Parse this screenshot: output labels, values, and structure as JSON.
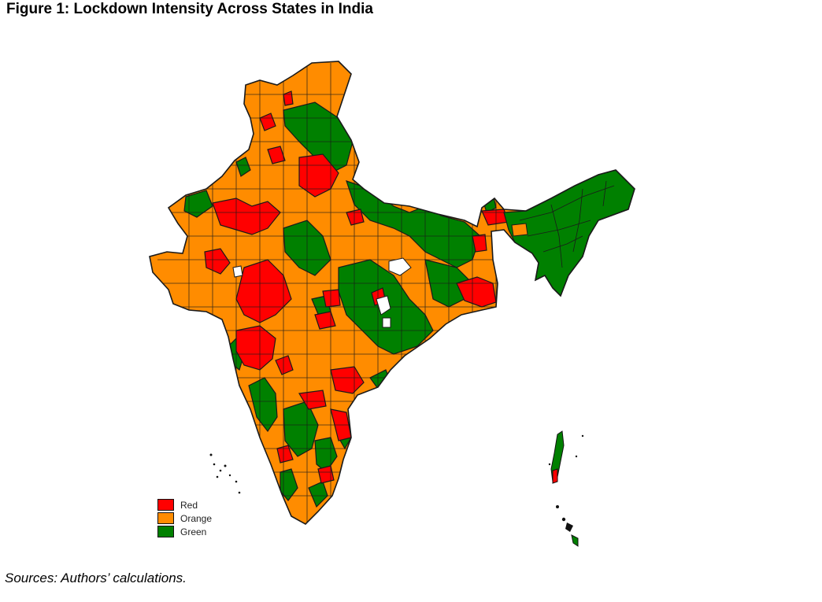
{
  "figure": {
    "title": "Figure 1: Lockdown Intensity Across States in India",
    "source_note": "Sources: Authors’ calculations."
  },
  "legend": {
    "items": [
      {
        "label": "Red",
        "color": "#FF0000"
      },
      {
        "label": "Orange",
        "color": "#FF8C00"
      },
      {
        "label": "Green",
        "color": "#008000"
      }
    ]
  },
  "colors": {
    "red": "#FF0000",
    "orange": "#FF8C00",
    "green": "#008000",
    "border": "#1a1a1a"
  }
}
